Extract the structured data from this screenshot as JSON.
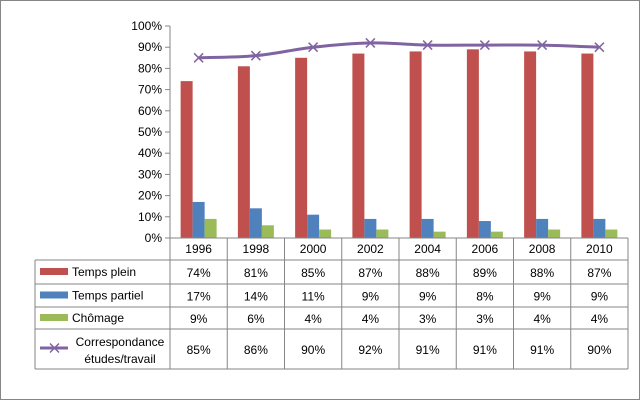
{
  "chart_data": {
    "type": "bar",
    "categories": [
      "1996",
      "1998",
      "2000",
      "2002",
      "2004",
      "2006",
      "2008",
      "2010"
    ],
    "series": [
      {
        "name": "Temps plein",
        "type": "bar",
        "color": "#c0504d",
        "values": [
          74,
          81,
          85,
          87,
          88,
          89,
          88,
          87
        ],
        "labels": [
          "74%",
          "81%",
          "85%",
          "87%",
          "88%",
          "89%",
          "88%",
          "87%"
        ]
      },
      {
        "name": "Temps partiel",
        "type": "bar",
        "color": "#4f81bd",
        "values": [
          17,
          14,
          11,
          9,
          9,
          8,
          9,
          9
        ],
        "labels": [
          "17%",
          "14%",
          "11%",
          "9%",
          "9%",
          "8%",
          "9%",
          "9%"
        ]
      },
      {
        "name": "Chômage",
        "type": "bar",
        "color": "#9bbb59",
        "values": [
          9,
          6,
          4,
          4,
          3,
          3,
          4,
          4
        ],
        "labels": [
          "9%",
          "6%",
          "4%",
          "4%",
          "3%",
          "3%",
          "4%",
          "4%"
        ]
      },
      {
        "name": "Correspondance études/travail",
        "name_lines": [
          "Correspondance",
          "études/travail"
        ],
        "type": "line",
        "marker": "x",
        "color": "#8064a2",
        "values": [
          85,
          86,
          90,
          92,
          91,
          91,
          91,
          90
        ],
        "labels": [
          "85%",
          "86%",
          "90%",
          "92%",
          "91%",
          "91%",
          "91%",
          "90%"
        ]
      }
    ],
    "ylim": [
      0,
      100
    ],
    "yticks": [
      "0%",
      "10%",
      "20%",
      "30%",
      "40%",
      "50%",
      "60%",
      "70%",
      "80%",
      "90%",
      "100%"
    ],
    "ytick_values": [
      0,
      10,
      20,
      30,
      40,
      50,
      60,
      70,
      80,
      90,
      100
    ],
    "grid": false,
    "legend": "data-table"
  }
}
